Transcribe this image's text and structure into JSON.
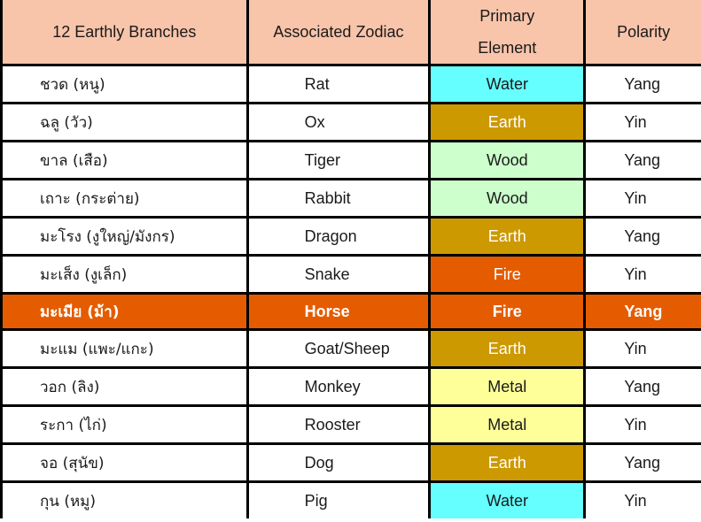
{
  "table": {
    "headers": {
      "branches": "12 Earthly Branches",
      "zodiac": "Associated Zodiac",
      "element_line1": "Primary",
      "element_line2": "Element",
      "polarity": "Polarity"
    },
    "colors": {
      "header_bg": "#f8c4aa",
      "highlight_row": "#e55c00",
      "water": "#66ffff",
      "earth": "#cc9900",
      "wood": "#ccffcc",
      "fire": "#e55c00",
      "metal": "#ffff99"
    },
    "rows": [
      {
        "branch": "ชวด (หนู)",
        "zodiac": "Rat",
        "element": "Water",
        "polarity": "Yang"
      },
      {
        "branch": "ฉลู (วัว)",
        "zodiac": "Ox",
        "element": "Earth",
        "polarity": "Yin"
      },
      {
        "branch": "ขาล (เสือ)",
        "zodiac": "Tiger",
        "element": "Wood",
        "polarity": "Yang"
      },
      {
        "branch": "เถาะ (กระต่าย)",
        "zodiac": "Rabbit",
        "element": "Wood",
        "polarity": "Yin"
      },
      {
        "branch": "มะโรง (งูใหญ่/มังกร)",
        "zodiac": "Dragon",
        "element": "Earth",
        "polarity": "Yang"
      },
      {
        "branch": "มะเส็ง (งูเล็ก)",
        "zodiac": "Snake",
        "element": "Fire",
        "polarity": "Yin"
      },
      {
        "branch": "มะเมีย (ม้า)",
        "zodiac": "Horse",
        "element": "Fire",
        "polarity": "Yang",
        "highlighted": true
      },
      {
        "branch": "มะแม (แพะ/แกะ)",
        "zodiac": "Goat/Sheep",
        "element": "Earth",
        "polarity": "Yin"
      },
      {
        "branch": "วอก (ลิง)",
        "zodiac": "Monkey",
        "element": "Metal",
        "polarity": "Yang"
      },
      {
        "branch": "ระกา (ไก่)",
        "zodiac": "Rooster",
        "element": "Metal",
        "polarity": "Yin"
      },
      {
        "branch": "จอ (สุนัข)",
        "zodiac": "Dog",
        "element": "Earth",
        "polarity": "Yang"
      },
      {
        "branch": "กุน (หมู)",
        "zodiac": "Pig",
        "element": "Water",
        "polarity": "Yin"
      }
    ]
  }
}
